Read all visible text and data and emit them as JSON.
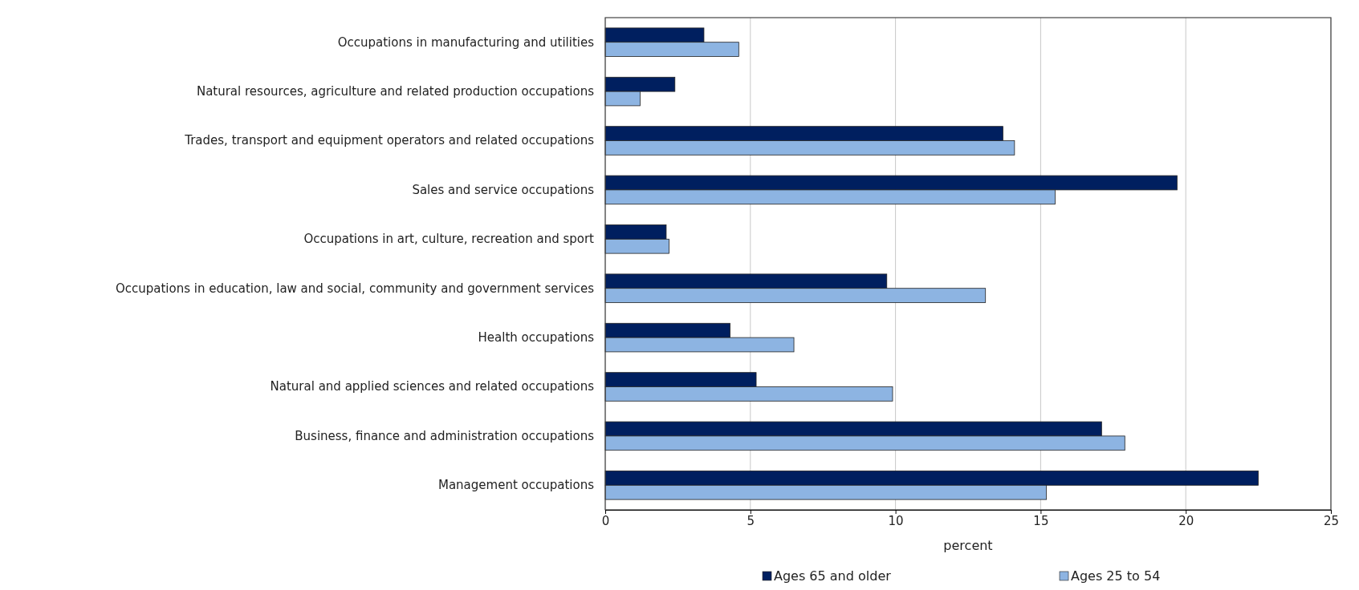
{
  "chart_data": {
    "type": "bar",
    "orientation": "horizontal",
    "xlabel": "percent",
    "categories": [
      "Occupations in manufacturing and utilities",
      "Natural resources, agriculture and related production occupations",
      "Trades, transport and equipment operators and related occupations",
      "Sales and service occupations",
      "Occupations in art, culture, recreation and sport",
      "Occupations in education, law and social, community and government services",
      "Health occupations",
      "Natural and applied sciences and related occupations",
      "Business, finance and administration occupations",
      "Management occupations"
    ],
    "series": [
      {
        "name": "Ages 65 and older",
        "color": "#001f5f",
        "values": [
          3.4,
          2.4,
          13.7,
          19.7,
          2.1,
          9.7,
          4.3,
          5.2,
          17.1,
          22.5
        ]
      },
      {
        "name": "Ages 25 to 54",
        "color": "#8db4e2",
        "values": [
          4.6,
          1.2,
          14.1,
          15.5,
          2.2,
          13.1,
          6.5,
          9.9,
          17.9,
          15.2
        ]
      }
    ],
    "xlim": [
      0,
      25
    ],
    "xticks": [
      0,
      5,
      10,
      15,
      20,
      25
    ],
    "grid": "x",
    "legend": "bottom"
  }
}
